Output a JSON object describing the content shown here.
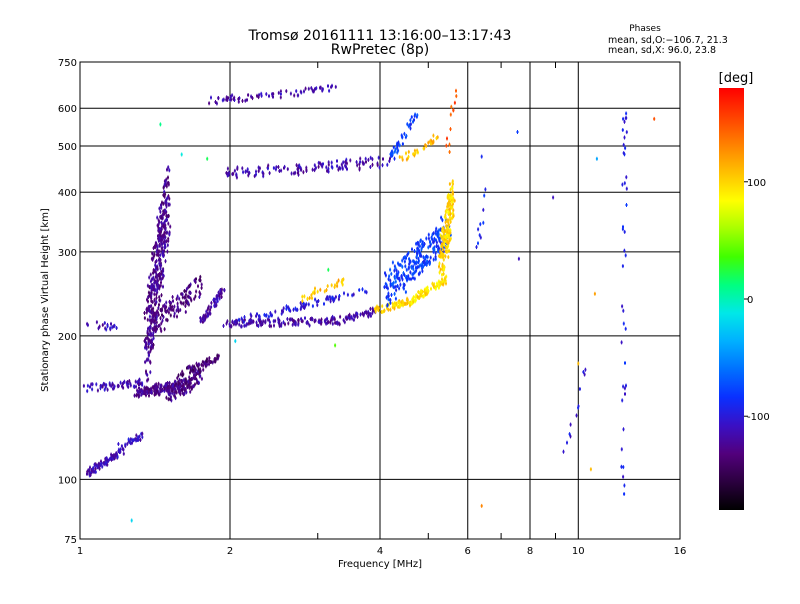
{
  "chart_data": {
    "type": "scatter",
    "title": "Tromsø 20161111 13:16:00–13:17:43",
    "subtitle": "RwPretec (8p)",
    "xlabel": "Frequency [MHz]",
    "ylabel": "Stationary phase Virtual Height [km]",
    "x_scale": "log",
    "y_scale": "log",
    "xlim": [
      1,
      16
    ],
    "ylim": [
      75,
      750
    ],
    "x_ticks": [
      1,
      2,
      4,
      6,
      8,
      10,
      16
    ],
    "x_tick_labels": [
      "1",
      "2",
      "4",
      "6",
      "8",
      "10",
      "16"
    ],
    "x_minor_ticks": [
      3,
      5,
      7,
      9
    ],
    "y_ticks": [
      75,
      100,
      200,
      300,
      400,
      500,
      600,
      750
    ],
    "y_tick_labels": [
      "75",
      "100",
      "200",
      "300",
      "400",
      "500",
      "600",
      "750"
    ],
    "grid": true,
    "stats": {
      "heading": "Phases",
      "line_o": "mean, sd,O:−106.7, 21.3",
      "line_x": "mean, sd,X:  96.0, 23.8"
    },
    "colorbar": {
      "label": "[deg]",
      "range": [
        -180,
        180
      ],
      "ticks": [
        100,
        0,
        -100
      ],
      "tick_labels": [
        "100",
        "0",
        "-100"
      ],
      "colormap": [
        "#000000",
        "#2b003f",
        "#52007c",
        "#3a10c4",
        "#0a30ff",
        "#0070ff",
        "#00b0ff",
        "#00e8e8",
        "#00ff80",
        "#40ff00",
        "#a8ff00",
        "#ffff00",
        "#ffc000",
        "#ff8000",
        "#ff4000",
        "#ff0000"
      ]
    },
    "traces": [
      {
        "x": [
          1.03,
          1.18
        ],
        "y": [
          213,
          208
        ],
        "phase": -115,
        "n": 18
      },
      {
        "x": [
          1.03,
          1.22
        ],
        "y": [
          103,
          115
        ],
        "phase": -115,
        "n": 90
      },
      {
        "x": [
          1.2,
          1.33
        ],
        "y": [
          118,
          123
        ],
        "phase": -110,
        "n": 30
      },
      {
        "x": [
          1.02,
          1.38
        ],
        "y": [
          155,
          160
        ],
        "phase": -115,
        "n": 60
      },
      {
        "x": [
          1.36,
          1.5
        ],
        "y": [
          160,
          460
        ],
        "phase": -125,
        "n": 420
      },
      {
        "x": [
          1.3,
          1.62
        ],
        "y": [
          150,
          160
        ],
        "phase": -125,
        "n": 160
      },
      {
        "x": [
          1.5,
          1.75
        ],
        "y": [
          145,
          170
        ],
        "phase": -130,
        "n": 120
      },
      {
        "x": [
          1.55,
          1.9
        ],
        "y": [
          165,
          180
        ],
        "phase": -135,
        "n": 60
      },
      {
        "x": [
          1.4,
          1.75
        ],
        "y": [
          200,
          270
        ],
        "phase": -130,
        "n": 120
      },
      {
        "x": [
          1.75,
          1.95
        ],
        "y": [
          215,
          250
        ],
        "phase": -120,
        "n": 60
      },
      {
        "x": [
          1.95,
          3.4
        ],
        "y": [
          211,
          216
        ],
        "phase": -120,
        "n": 140
      },
      {
        "x": [
          2.1,
          3.8
        ],
        "y": [
          215,
          250
        ],
        "phase": -100,
        "n": 80
      },
      {
        "x": [
          3.4,
          3.9
        ],
        "y": [
          216,
          225
        ],
        "phase": -115,
        "n": 40
      },
      {
        "x": [
          2.75,
          3.4
        ],
        "y": [
          238,
          262
        ],
        "phase": 110,
        "n": 30
      },
      {
        "x": [
          3.9,
          4.6
        ],
        "y": [
          226,
          236
        ],
        "phase": 100,
        "n": 60
      },
      {
        "x": [
          4.6,
          5.4
        ],
        "y": [
          236,
          262
        ],
        "phase": 95,
        "n": 70
      },
      {
        "x": [
          4.1,
          5.5
        ],
        "y": [
          230,
          360
        ],
        "phase": -80,
        "n": 260
      },
      {
        "x": [
          5.3,
          5.6
        ],
        "y": [
          250,
          440
        ],
        "phase": 100,
        "n": 180
      },
      {
        "x": [
          5.45,
          5.65
        ],
        "y": [
          480,
          650
        ],
        "phase": 150,
        "n": 12
      },
      {
        "x": [
          1.95,
          4.2
        ],
        "y": [
          430,
          470
        ],
        "phase": -115,
        "n": 130
      },
      {
        "x": [
          4.2,
          4.75
        ],
        "y": [
          470,
          590
        ],
        "phase": -80,
        "n": 40
      },
      {
        "x": [
          4.4,
          5.2
        ],
        "y": [
          470,
          520
        ],
        "phase": 110,
        "n": 30
      },
      {
        "x": [
          1.8,
          3.25
        ],
        "y": [
          620,
          660
        ],
        "phase": -115,
        "n": 70
      },
      {
        "x": [
          6.3,
          6.5
        ],
        "y": [
          310,
          400
        ],
        "phase": -90,
        "n": 10
      },
      {
        "x": [
          12.3,
          12.4
        ],
        "y": [
          90,
          600
        ],
        "phase": -95,
        "n": 40
      },
      {
        "x": [
          9.3,
          10.8
        ],
        "y": [
          110,
          200
        ],
        "phase": -100,
        "n": 12
      }
    ],
    "isolated_points": [
      {
        "x": 1.27,
        "y": 82,
        "phase": -20
      },
      {
        "x": 1.45,
        "y": 555,
        "phase": 10
      },
      {
        "x": 1.8,
        "y": 470,
        "phase": 20
      },
      {
        "x": 1.6,
        "y": 480,
        "phase": -10
      },
      {
        "x": 2.05,
        "y": 195,
        "phase": -20
      },
      {
        "x": 3.25,
        "y": 191,
        "phase": 40
      },
      {
        "x": 3.15,
        "y": 275,
        "phase": 20
      },
      {
        "x": 6.4,
        "y": 88,
        "phase": 130
      },
      {
        "x": 6.4,
        "y": 475,
        "phase": -90
      },
      {
        "x": 7.55,
        "y": 535,
        "phase": -80
      },
      {
        "x": 7.6,
        "y": 290,
        "phase": -110
      },
      {
        "x": 8.9,
        "y": 390,
        "phase": -110
      },
      {
        "x": 10.9,
        "y": 470,
        "phase": -40
      },
      {
        "x": 10.8,
        "y": 245,
        "phase": 120
      },
      {
        "x": 10.6,
        "y": 105,
        "phase": 110
      },
      {
        "x": 14.2,
        "y": 570,
        "phase": 150
      },
      {
        "x": 10.0,
        "y": 175,
        "phase": 110
      },
      {
        "x": 12.3,
        "y": 570,
        "phase": -90
      }
    ]
  }
}
